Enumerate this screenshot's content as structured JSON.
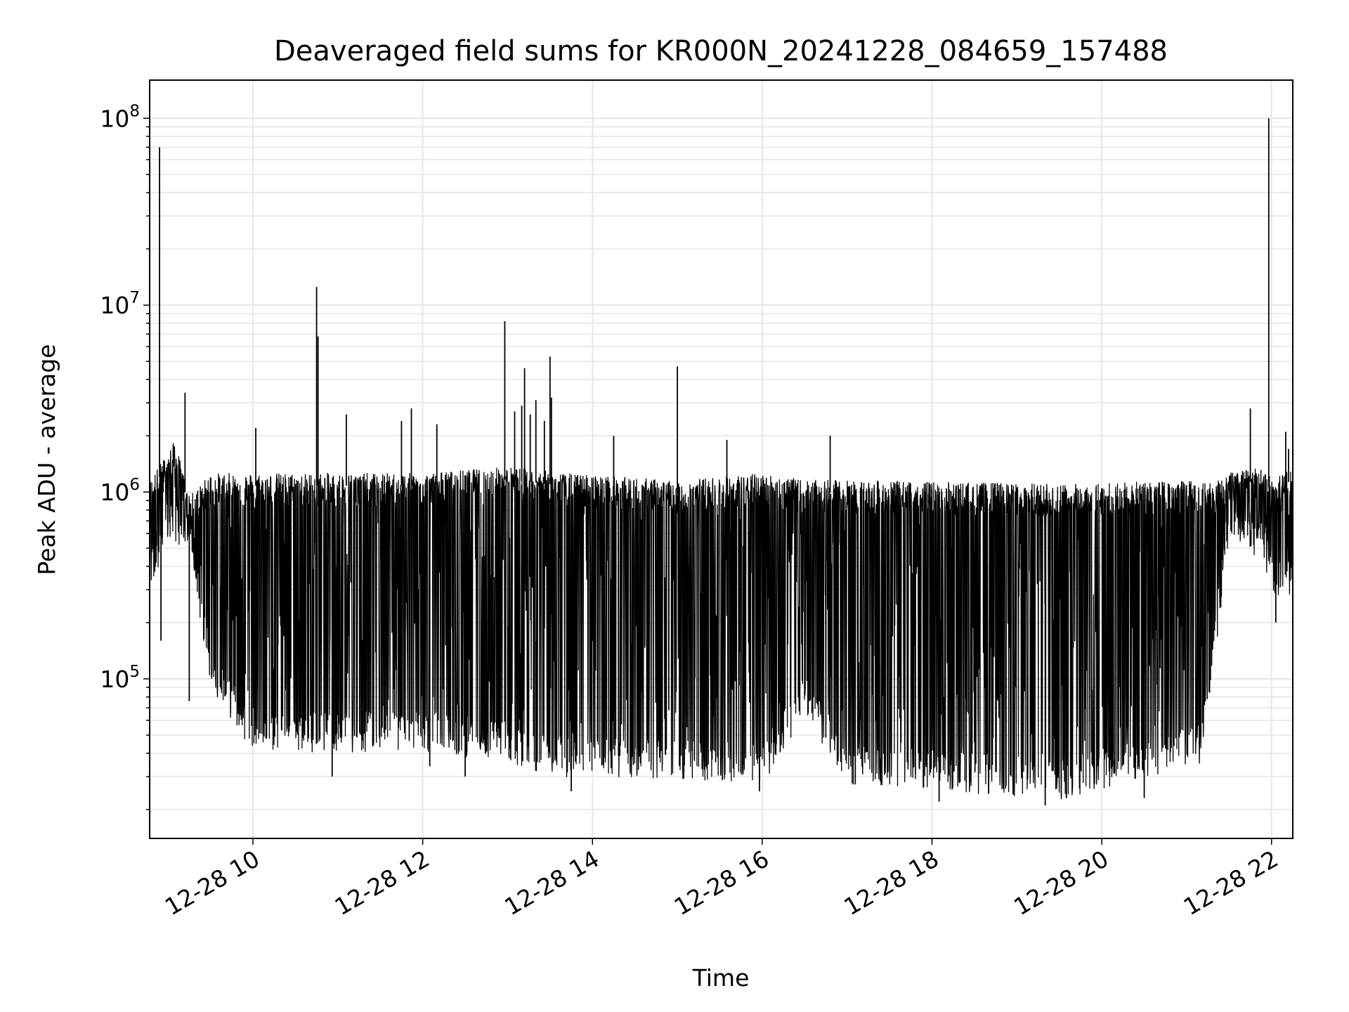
{
  "chart_data": {
    "type": "line",
    "title": "Deaveraged field sums for KR000N_20241228_084659_157488",
    "xlabel": "Time",
    "ylabel": "Peak ADU - average",
    "yscale": "log",
    "xlim": [
      "2024-12-28T08:47",
      "2024-12-28T22:15"
    ],
    "ylim": [
      14000,
      160000000
    ],
    "grid": true,
    "line_color": "#000000",
    "grid_color": "#e6e6e6",
    "x_ticks": [
      {
        "value": "2024-12-28T10:00",
        "label": "12-28 10"
      },
      {
        "value": "2024-12-28T12:00",
        "label": "12-28 12"
      },
      {
        "value": "2024-12-28T14:00",
        "label": "12-28 14"
      },
      {
        "value": "2024-12-28T16:00",
        "label": "12-28 16"
      },
      {
        "value": "2024-12-28T18:00",
        "label": "12-28 18"
      },
      {
        "value": "2024-12-28T20:00",
        "label": "12-28 20"
      },
      {
        "value": "2024-12-28T22:00",
        "label": "12-28 22"
      }
    ],
    "y_ticks": [
      {
        "value": 100000,
        "base": "10",
        "exp": "5"
      },
      {
        "value": 1000000,
        "base": "10",
        "exp": "6"
      },
      {
        "value": 10000000,
        "base": "10",
        "exp": "7"
      },
      {
        "value": 100000000,
        "base": "10",
        "exp": "8"
      }
    ],
    "series": [
      {
        "description_note": "",
        "profile": [
          {
            "time": "2024-12-28T08:47",
            "high": 1100000,
            "low": 320000
          },
          {
            "time": "2024-12-28T09:05",
            "high": 1800000,
            "low": 600000
          },
          {
            "time": "2024-12-28T09:15",
            "high": 900000,
            "low": 500000
          },
          {
            "time": "2024-12-28T09:30",
            "high": 1200000,
            "low": 100000
          },
          {
            "time": "2024-12-28T10:00",
            "high": 1200000,
            "low": 45000
          },
          {
            "time": "2024-12-28T12:00",
            "high": 1200000,
            "low": 45000
          },
          {
            "time": "2024-12-28T13:00",
            "high": 1300000,
            "low": 40000
          },
          {
            "time": "2024-12-28T13:40",
            "high": 1200000,
            "low": 32000
          },
          {
            "time": "2024-12-28T15:00",
            "high": 1100000,
            "low": 32000
          },
          {
            "time": "2024-12-28T16:00",
            "high": 1200000,
            "low": 30000
          },
          {
            "time": "2024-12-28T16:30",
            "high": 1100000,
            "low": 70000
          },
          {
            "time": "2024-12-28T17:00",
            "high": 1100000,
            "low": 30000
          },
          {
            "time": "2024-12-28T19:30",
            "high": 1050000,
            "low": 25000
          },
          {
            "time": "2024-12-28T21:10",
            "high": 1100000,
            "low": 38000
          },
          {
            "time": "2024-12-28T21:20",
            "high": 1100000,
            "low": 150000
          },
          {
            "time": "2024-12-28T21:30",
            "high": 1200000,
            "low": 550000
          },
          {
            "time": "2024-12-28T21:55",
            "high": 1300000,
            "low": 450000
          },
          {
            "time": "2024-12-28T22:00",
            "high": 1100000,
            "low": 320000
          },
          {
            "time": "2024-12-28T22:15",
            "high": 1300000,
            "low": 300000
          }
        ],
        "spikes": [
          {
            "time": "2024-12-28T08:54",
            "value": 70000000
          },
          {
            "time": "2024-12-28T08:55",
            "value": 160000,
            "down": true
          },
          {
            "time": "2024-12-28T09:12",
            "value": 3400000
          },
          {
            "time": "2024-12-28T09:15",
            "value": 76000,
            "down": true
          },
          {
            "time": "2024-12-28T10:02",
            "value": 2200000
          },
          {
            "time": "2024-12-28T10:45",
            "value": 12500000
          },
          {
            "time": "2024-12-28T10:46",
            "value": 6800000
          },
          {
            "time": "2024-12-28T10:56",
            "value": 30000,
            "down": true
          },
          {
            "time": "2024-12-28T11:06",
            "value": 2600000
          },
          {
            "time": "2024-12-28T11:45",
            "value": 2400000
          },
          {
            "time": "2024-12-28T11:52",
            "value": 2800000
          },
          {
            "time": "2024-12-28T12:05",
            "value": 34000,
            "down": true
          },
          {
            "time": "2024-12-28T12:10",
            "value": 2300000
          },
          {
            "time": "2024-12-28T12:30",
            "value": 30000,
            "down": true
          },
          {
            "time": "2024-12-28T12:58",
            "value": 8200000
          },
          {
            "time": "2024-12-28T13:05",
            "value": 2700000
          },
          {
            "time": "2024-12-28T13:10",
            "value": 2900000
          },
          {
            "time": "2024-12-28T13:12",
            "value": 4600000
          },
          {
            "time": "2024-12-28T13:16",
            "value": 2600000
          },
          {
            "time": "2024-12-28T13:20",
            "value": 3100000
          },
          {
            "time": "2024-12-28T13:26",
            "value": 2400000
          },
          {
            "time": "2024-12-28T13:30",
            "value": 5300000
          },
          {
            "time": "2024-12-28T13:31",
            "value": 3200000
          },
          {
            "time": "2024-12-28T13:45",
            "value": 25000,
            "down": true
          },
          {
            "time": "2024-12-28T14:15",
            "value": 2000000
          },
          {
            "time": "2024-12-28T15:00",
            "value": 4700000
          },
          {
            "time": "2024-12-28T15:35",
            "value": 1900000
          },
          {
            "time": "2024-12-28T15:58",
            "value": 25000,
            "down": true
          },
          {
            "time": "2024-12-28T16:48",
            "value": 2000000
          },
          {
            "time": "2024-12-28T18:05",
            "value": 22000,
            "down": true
          },
          {
            "time": "2024-12-28T19:20",
            "value": 21000,
            "down": true
          },
          {
            "time": "2024-12-28T19:35",
            "value": 23000,
            "down": true
          },
          {
            "time": "2024-12-28T20:30",
            "value": 23000,
            "down": true
          },
          {
            "time": "2024-12-28T21:45",
            "value": 2800000
          },
          {
            "time": "2024-12-28T21:58",
            "value": 100000000
          },
          {
            "time": "2024-12-28T22:03",
            "value": 200000,
            "down": true
          },
          {
            "time": "2024-12-28T22:10",
            "value": 2100000
          },
          {
            "time": "2024-12-28T22:12",
            "value": 1700000
          }
        ]
      }
    ]
  }
}
